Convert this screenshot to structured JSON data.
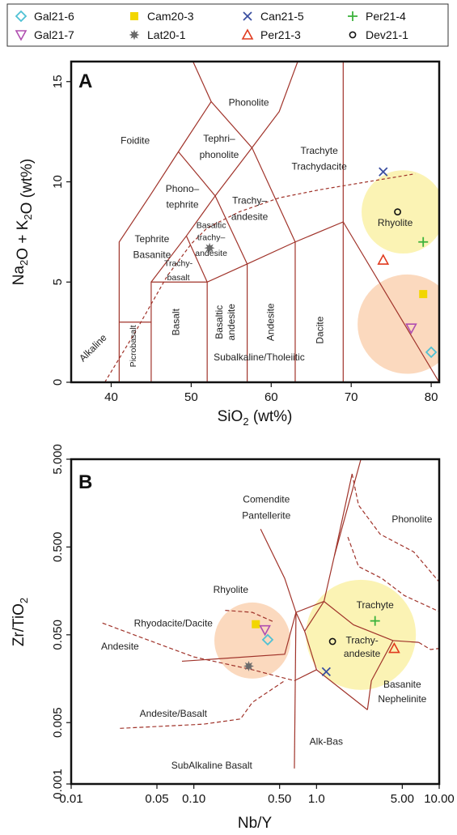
{
  "legend": {
    "entries": [
      {
        "name": "Gal21-6",
        "marker": "diamond-open",
        "color": "#4fc1d4"
      },
      {
        "name": "Cam20-3",
        "marker": "square-filled",
        "color": "#f2d600"
      },
      {
        "name": "Can21-5",
        "marker": "cross",
        "color": "#3a4ea0"
      },
      {
        "name": "Per21-4",
        "marker": "plus",
        "color": "#3cb33c"
      },
      {
        "name": "Gal21-7",
        "marker": "triangle-down-open",
        "color": "#b04fb0"
      },
      {
        "name": "Lat20-1",
        "marker": "star-filled",
        "color": "#6b6b6b"
      },
      {
        "name": "Per21-3",
        "marker": "triangle-up-open",
        "color": "#e03a1e"
      },
      {
        "name": "Dev21-1",
        "marker": "circle-open",
        "color": "#111111"
      }
    ]
  },
  "colors": {
    "boundary": "#a0332a",
    "yellow_zone": "#fbf3b4",
    "orange_zone": "#fbd9be"
  },
  "chart_data": [
    {
      "type": "scatter",
      "panel": "A",
      "xlabel_main": "SiO",
      "xlabel_sub": "2",
      "xlabel_unit": " (wt%)",
      "ylabel_parts": [
        {
          "t": "Na",
          "sub": false
        },
        {
          "t": "2",
          "sub": true
        },
        {
          "t": "O + K",
          "sub": false
        },
        {
          "t": "2",
          "sub": true
        },
        {
          "t": "O (wt%)",
          "sub": false
        }
      ],
      "xlim": [
        35,
        81
      ],
      "ylim": [
        0,
        16
      ],
      "xticks": [
        40,
        50,
        60,
        70,
        80
      ],
      "yticks": [
        0,
        5,
        10,
        15
      ],
      "fields": [
        {
          "text": "Phonolite",
          "x": 57.2,
          "y": 13.8
        },
        {
          "text": "Foidite",
          "x": 43,
          "y": 11.9
        },
        {
          "text": "Tephri–",
          "x": 53.5,
          "y": 12.0
        },
        {
          "text": "phonolite",
          "x": 53.5,
          "y": 11.2
        },
        {
          "text": "Trachyte",
          "x": 66,
          "y": 11.4
        },
        {
          "text": "Trachydacite",
          "x": 66,
          "y": 10.6
        },
        {
          "text": "Phono–",
          "x": 48.9,
          "y": 9.5
        },
        {
          "text": "tephrite",
          "x": 48.9,
          "y": 8.7
        },
        {
          "text": "Trachy–",
          "x": 57.3,
          "y": 8.9
        },
        {
          "text": "andesite",
          "x": 57.3,
          "y": 8.1
        },
        {
          "text": "Rhyolite",
          "x": 75.5,
          "y": 7.8
        },
        {
          "text": "Tephrite",
          "x": 45.1,
          "y": 7.0
        },
        {
          "text": "Basanite",
          "x": 45.1,
          "y": 6.2
        },
        {
          "text": "Basaltic",
          "x": 52.5,
          "y": 7.7,
          "small": true
        },
        {
          "text": "trachy–",
          "x": 52.5,
          "y": 7.1,
          "small": true
        },
        {
          "text": "andesite",
          "x": 52.5,
          "y": 6.3,
          "small": true
        },
        {
          "text": "Trachy-",
          "x": 48.4,
          "y": 5.8,
          "small": true
        },
        {
          "text": "basalt",
          "x": 48.4,
          "y": 5.1,
          "small": true
        },
        {
          "text": "Subalkaline/Tholeiitic",
          "x": 58.5,
          "y": 1.1
        }
      ],
      "vertical_fields": [
        {
          "text": "Alkaline",
          "x": 38.0,
          "y": 1.6,
          "angle": -45
        },
        {
          "text": "Picrobasalt",
          "x": 43.1,
          "y": 1.8,
          "angle": -90,
          "small": true
        },
        {
          "text": "Basalt",
          "x": 48.5,
          "y": 3.0,
          "angle": -90
        },
        {
          "text": "Basaltic",
          "x": 53.9,
          "y": 3.0,
          "angle": -90
        },
        {
          "text": "andesite",
          "x": 55.4,
          "y": 3.0,
          "angle": -90
        },
        {
          "text": "Andesite",
          "x": 60.3,
          "y": 3.0,
          "angle": -90
        },
        {
          "text": "Dacite",
          "x": 66.5,
          "y": 2.6,
          "angle": -90
        }
      ],
      "boundaries": [
        [
          [
            41,
            0
          ],
          [
            41,
            7
          ],
          [
            45,
            9.4
          ],
          [
            48.4,
            11.5
          ],
          [
            52.5,
            14
          ],
          [
            57.6,
            11.7
          ],
          [
            63,
            7
          ],
          [
            69,
            8
          ],
          [
            69,
            0
          ]
        ],
        [
          [
            45,
            0
          ],
          [
            45,
            5
          ],
          [
            52,
            5
          ],
          [
            57,
            5.9
          ],
          [
            63,
            7
          ],
          [
            63,
            0
          ]
        ],
        [
          [
            52,
            0
          ],
          [
            52,
            5
          ]
        ],
        [
          [
            57,
            0
          ],
          [
            57,
            5.9
          ]
        ],
        [
          [
            41,
            3
          ],
          [
            45,
            3
          ]
        ],
        [
          [
            45,
            5
          ],
          [
            49.4,
            7.3
          ],
          [
            53,
            9.3
          ],
          [
            57.6,
            11.7
          ],
          [
            61,
            13.5
          ],
          [
            63.5,
            16.2
          ]
        ],
        [
          [
            49.4,
            7.3
          ],
          [
            52,
            5
          ]
        ],
        [
          [
            53,
            9.3
          ],
          [
            57,
            5.9
          ]
        ],
        [
          [
            48.4,
            11.5
          ],
          [
            53,
            9.3
          ]
        ],
        [
          [
            52.5,
            14
          ],
          [
            50,
            16.2
          ]
        ],
        [
          [
            69,
            8
          ],
          [
            69,
            16.2
          ]
        ],
        [
          [
            69,
            8
          ],
          [
            81,
            0
          ]
        ]
      ],
      "alkaline_divide": [
        [
          39.2,
          0
        ],
        [
          43,
          2.5
        ],
        [
          47,
          5.3
        ],
        [
          50,
          6.9
        ],
        [
          52,
          7.7
        ],
        [
          56,
          8.5
        ],
        [
          61,
          9.2
        ],
        [
          66,
          9.6
        ],
        [
          72,
          10
        ],
        [
          78,
          10.4
        ]
      ],
      "zones": [
        {
          "kind": "yellow",
          "cx": 76.5,
          "cy": 8.5,
          "r": 5.2
        },
        {
          "kind": "orange",
          "cx": 77,
          "cy": 2.9,
          "r": 6.2
        }
      ],
      "series": [
        {
          "name": "Can21-5",
          "x": [
            74
          ],
          "y": [
            10.5
          ]
        },
        {
          "name": "Dev21-1",
          "x": [
            75.8
          ],
          "y": [
            8.5
          ]
        },
        {
          "name": "Per21-4",
          "x": [
            79
          ],
          "y": [
            7.0
          ]
        },
        {
          "name": "Per21-3",
          "x": [
            74
          ],
          "y": [
            6.1
          ]
        },
        {
          "name": "Lat20-1",
          "x": [
            52.3
          ],
          "y": [
            6.7
          ]
        },
        {
          "name": "Cam20-3",
          "x": [
            79
          ],
          "y": [
            4.4
          ]
        },
        {
          "name": "Gal21-7",
          "x": [
            77.5
          ],
          "y": [
            2.7
          ]
        },
        {
          "name": "Gal21-6",
          "x": [
            80
          ],
          "y": [
            1.5
          ]
        }
      ]
    },
    {
      "type": "scatter",
      "panel": "B",
      "xscale": "log",
      "yscale": "log",
      "xlabel_main": "Nb/Y",
      "ylabel_parts": [
        {
          "t": "Zr/TiO",
          "sub": false
        },
        {
          "t": "2",
          "sub": true
        }
      ],
      "xlim": [
        0.01,
        10
      ],
      "ylim": [
        0.001,
        5
      ],
      "xticks": [
        0.01,
        0.05,
        0.1,
        0.5,
        1,
        5,
        10
      ],
      "xticklabels": [
        "0.01",
        "0.05",
        "0.10",
        "0.50",
        "1.0",
        "5.00",
        "10.00"
      ],
      "yticks": [
        0.001,
        0.005,
        0.05,
        0.5,
        5
      ],
      "yticklabels": [
        "0.001",
        "0.005",
        "0.050",
        "0.500",
        "5.000"
      ],
      "fields": [
        {
          "text": "Comendite",
          "x": 0.39,
          "y": 1.6
        },
        {
          "text": "Pantellerite",
          "x": 0.39,
          "y": 1.05
        },
        {
          "text": "Phonolite",
          "x": 6.0,
          "y": 0.95
        },
        {
          "text": "Rhyolite",
          "x": 0.2,
          "y": 0.15
        },
        {
          "text": "Trachyte",
          "x": 3.0,
          "y": 0.1
        },
        {
          "text": "Rhyodacite/Dacite",
          "x": 0.068,
          "y": 0.062
        },
        {
          "text": "Trachy-",
          "x": 2.35,
          "y": 0.04
        },
        {
          "text": "andesite",
          "x": 2.35,
          "y": 0.028
        },
        {
          "text": "Andesite",
          "x": 0.025,
          "y": 0.034
        },
        {
          "text": "Basanite",
          "x": 5.0,
          "y": 0.0125
        },
        {
          "text": "Nephelinite",
          "x": 5.0,
          "y": 0.0085
        },
        {
          "text": "Andesite/Basalt",
          "x": 0.068,
          "y": 0.0058
        },
        {
          "text": "Alk-Bas",
          "x": 1.2,
          "y": 0.0028
        },
        {
          "text": "SubAlkaline Basalt",
          "x": 0.14,
          "y": 0.0015
        }
      ],
      "boundaries": [
        [
          [
            0.35,
            0.8
          ],
          [
            0.55,
            0.22
          ],
          [
            0.68,
            0.09
          ],
          [
            1.15,
            0.12
          ],
          [
            1.4,
            0.4
          ],
          [
            1.95,
            3.4
          ]
        ],
        [
          [
            1.4,
            0.4
          ],
          [
            2.3,
            5
          ]
        ],
        [
          [
            1.15,
            0.12
          ],
          [
            0.8,
            0.055
          ],
          [
            0.68,
            0.09
          ]
        ],
        [
          [
            1.15,
            0.12
          ],
          [
            2.0,
            0.065
          ],
          [
            4.2,
            0.043
          ]
        ],
        [
          [
            0.68,
            0.09
          ],
          [
            0.55,
            0.03
          ],
          [
            0.08,
            0.025
          ]
        ],
        [
          [
            0.68,
            0.09
          ],
          [
            0.66,
            0.0015
          ]
        ],
        [
          [
            4.2,
            0.043
          ],
          [
            2.8,
            0.015
          ],
          [
            2.6,
            0.007
          ]
        ],
        [
          [
            0.8,
            0.055
          ],
          [
            1.0,
            0.02
          ],
          [
            2.6,
            0.007
          ]
        ],
        [
          [
            0.66,
            0.015
          ],
          [
            1.0,
            0.02
          ]
        ],
        [
          [
            4.2,
            0.043
          ],
          [
            6.8,
            0.041
          ]
        ]
      ],
      "dashed": [
        [
          [
            0.18,
            0.095
          ],
          [
            0.3,
            0.09
          ],
          [
            0.45,
            0.07
          ]
        ],
        [
          [
            0.018,
            0.068
          ],
          [
            0.05,
            0.04
          ],
          [
            0.1,
            0.028
          ],
          [
            0.3,
            0.02
          ],
          [
            0.66,
            0.015
          ]
        ],
        [
          [
            0.025,
            0.0043
          ],
          [
            0.12,
            0.0048
          ],
          [
            0.24,
            0.0055
          ],
          [
            0.3,
            0.0085
          ],
          [
            0.55,
            0.015
          ]
        ],
        [
          [
            1.8,
            0.65
          ],
          [
            2.2,
            0.3
          ],
          [
            3.4,
            0.22
          ],
          [
            5.2,
            0.14
          ],
          [
            10,
            0.092
          ]
        ],
        [
          [
            1.95,
            3.4
          ],
          [
            2.2,
            1.5
          ],
          [
            3.3,
            0.7
          ],
          [
            6.2,
            0.44
          ],
          [
            10,
            0.2
          ]
        ],
        [
          [
            6.8,
            0.041
          ],
          [
            8.5,
            0.034
          ],
          [
            10,
            0.035
          ]
        ]
      ],
      "zones": [
        {
          "kind": "orange",
          "cx": 0.3,
          "cy": 0.043,
          "r": 47
        },
        {
          "kind": "yellow",
          "cx": 2.3,
          "cy": 0.05,
          "r": 68
        }
      ],
      "series": [
        {
          "name": "Cam20-3",
          "x": [
            0.32
          ],
          "y": [
            0.066
          ]
        },
        {
          "name": "Gal21-7",
          "x": [
            0.38
          ],
          "y": [
            0.057
          ]
        },
        {
          "name": "Gal21-6",
          "x": [
            0.4
          ],
          "y": [
            0.044
          ]
        },
        {
          "name": "Lat20-1",
          "x": [
            0.28
          ],
          "y": [
            0.022
          ]
        },
        {
          "name": "Dev21-1",
          "x": [
            1.35
          ],
          "y": [
            0.042
          ]
        },
        {
          "name": "Per21-4",
          "x": [
            3.0
          ],
          "y": [
            0.072
          ]
        },
        {
          "name": "Per21-3",
          "x": [
            4.3
          ],
          "y": [
            0.035
          ]
        },
        {
          "name": "Can21-5",
          "x": [
            1.2
          ],
          "y": [
            0.019
          ]
        }
      ]
    }
  ]
}
